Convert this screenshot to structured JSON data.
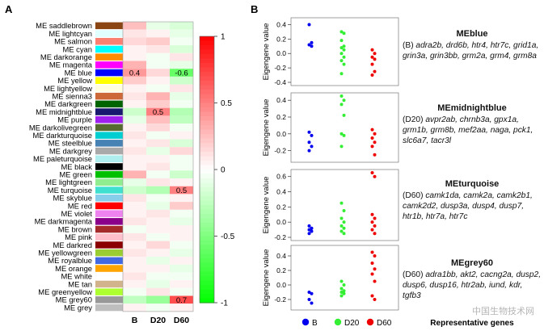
{
  "panel_labels": {
    "a": "A",
    "b": "B"
  },
  "chart_data": [
    {
      "type": "heatmap",
      "rows": [
        "ME saddlebrown",
        "ME lightcyan",
        "ME salmon",
        "ME cyan",
        "ME darkorange",
        "ME magenta",
        "ME blue",
        "ME yellow",
        "ME lightyellow",
        "ME sienna3",
        "ME darkgreen",
        "ME midnightblue",
        "ME purple",
        "ME darkolivegreen",
        "ME darkturquoise",
        "ME steelblue",
        "ME darkgrey",
        "ME paleturquoise",
        "ME black",
        "ME green",
        "ME lightgreen",
        "ME turquoise",
        "ME skyblue",
        "ME red",
        "ME violet",
        "ME darkmagenta",
        "ME brown",
        "ME pink",
        "ME darkred",
        "ME yellowgreen",
        "ME royalblue",
        "ME orange",
        "ME white",
        "ME tan",
        "ME greenyellow",
        "ME grey60",
        "ME grey"
      ],
      "module_colors": [
        "#8b4513",
        "#e0ffff",
        "#fa8072",
        "#00ffff",
        "#ff8c00",
        "#ff00ff",
        "#0000ff",
        "#ffff00",
        "#ffffe0",
        "#cd6839",
        "#006400",
        "#191970",
        "#a020f0",
        "#556b2f",
        "#00ced1",
        "#4682b4",
        "#a9a9a9",
        "#afeeee",
        "#000000",
        "#00c000",
        "#90ee90",
        "#40e0d0",
        "#87ceeb",
        "#ff0000",
        "#ee82ee",
        "#8b008b",
        "#a52a2a",
        "#ffc0cb",
        "#8b0000",
        "#9acd32",
        "#4169e1",
        "#ffa500",
        "#ffffff",
        "#d2b48c",
        "#adff2f",
        "#999999",
        "#bebebe"
      ],
      "columns": [
        "B",
        "D20",
        "D60"
      ],
      "values": [
        [
          0.25,
          -0.1,
          -0.15
        ],
        [
          0.1,
          0.05,
          -0.1
        ],
        [
          0.15,
          0.2,
          -0.05
        ],
        [
          0.05,
          0.1,
          -0.15
        ],
        [
          0.05,
          -0.05,
          0.1
        ],
        [
          0.3,
          -0.05,
          -0.1
        ],
        [
          0.4,
          0.15,
          -0.6
        ],
        [
          0.2,
          0.05,
          -0.2
        ],
        [
          0.05,
          -0.05,
          0.1
        ],
        [
          0.1,
          0.3,
          -0.1
        ],
        [
          0.05,
          0.2,
          -0.05
        ],
        [
          -0.2,
          0.5,
          -0.3
        ],
        [
          -0.1,
          0.25,
          -0.25
        ],
        [
          0.05,
          0.15,
          -0.05
        ],
        [
          0.1,
          -0.05,
          0.05
        ],
        [
          0.05,
          0.1,
          -0.15
        ],
        [
          0.1,
          -0.1,
          0.15
        ],
        [
          0.05,
          0.05,
          -0.05
        ],
        [
          0.05,
          0.1,
          -0.05
        ],
        [
          0.3,
          -0.05,
          -0.2
        ],
        [
          -0.1,
          0.1,
          0.05
        ],
        [
          -0.2,
          -0.3,
          0.5
        ],
        [
          0.1,
          -0.05,
          0.05
        ],
        [
          0.05,
          -0.1,
          0.2
        ],
        [
          0.05,
          0.1,
          -0.05
        ],
        [
          0.1,
          0.05,
          -0.1
        ],
        [
          -0.05,
          0.05,
          0.05
        ],
        [
          0.1,
          -0.05,
          0.05
        ],
        [
          0.05,
          0.15,
          -0.05
        ],
        [
          0.1,
          0.05,
          -0.1
        ],
        [
          0.05,
          -0.1,
          0.05
        ],
        [
          0.05,
          0.05,
          -0.1
        ],
        [
          0.1,
          -0.05,
          -0.05
        ],
        [
          0.05,
          -0.1,
          0.05
        ],
        [
          -0.05,
          0.1,
          -0.05
        ],
        [
          -0.25,
          -0.4,
          0.7
        ],
        [
          0.05,
          -0.05,
          0.05
        ]
      ],
      "cell_labels": {
        "0.4": "0.4",
        "-0.6": "-0.6",
        "0.5": "0.5",
        "0.7": "0.7"
      },
      "annotated_cells": [
        {
          "row": 6,
          "col": 0,
          "label": "0.4"
        },
        {
          "row": 6,
          "col": 2,
          "label": "-0.6"
        },
        {
          "row": 11,
          "col": 1,
          "label": "0.5"
        },
        {
          "row": 21,
          "col": 2,
          "label": "0.5"
        },
        {
          "row": 35,
          "col": 2,
          "label": "0.7"
        }
      ],
      "colorbar": {
        "ticks": [
          "1",
          "0.5",
          "0",
          "-0.5",
          "-1"
        ],
        "tick_values": [
          1,
          0.5,
          0,
          -0.5,
          -1
        ],
        "range": [
          -1,
          1
        ],
        "high_color": "#ff0000",
        "mid_color": "#ffffff",
        "low_color": "#00ff00"
      }
    },
    {
      "type": "scatter",
      "ylabel": "Eigengene value",
      "group_colors": {
        "B": "#0000ee",
        "D20": "#33ee33",
        "D60": "#ee0000"
      },
      "legend": [
        "B",
        "D20",
        "D60"
      ],
      "xlabel": "Representative genes",
      "panels": [
        {
          "ylim": [
            -0.4,
            0.45
          ],
          "yticks": [
            0.4,
            0.2,
            0.0,
            -0.2,
            -0.4
          ],
          "ytick_labels": [
            "0.4",
            "0.2",
            "0.0",
            "-0.2",
            "-0.4"
          ],
          "B": [
            0.4,
            0.15,
            0.12,
            0.1
          ],
          "D20": [
            0.3,
            0.28,
            0.18,
            0.1,
            0.08,
            0.05,
            0.0,
            -0.05,
            -0.1,
            -0.15,
            -0.28
          ],
          "D60": [
            0.05,
            0.0,
            -0.05,
            -0.08,
            -0.15,
            -0.25,
            -0.3
          ]
        },
        {
          "ylim": [
            -0.3,
            0.45
          ],
          "yticks": [
            0.4,
            0.2,
            0.0,
            -0.2
          ],
          "ytick_labels": [
            "0.4",
            "0.2",
            "0.0",
            "-0.2"
          ],
          "B": [
            0.02,
            -0.02,
            -0.1,
            -0.15,
            -0.2
          ],
          "D20": [
            0.45,
            0.4,
            0.35,
            0.22,
            0.0,
            -0.02,
            -0.15
          ],
          "D60": [
            0.05,
            0.0,
            -0.05,
            -0.1,
            -0.15,
            -0.25
          ]
        },
        {
          "ylim": [
            -0.2,
            0.65
          ],
          "yticks": [
            0.6,
            0.4,
            0.2,
            0.0,
            -0.2
          ],
          "ytick_labels": [
            "0.6",
            "0.4",
            "0.2",
            "0.0",
            "-0.2"
          ],
          "B": [
            -0.05,
            -0.08,
            -0.1,
            -0.12,
            -0.15
          ],
          "D20": [
            0.25,
            0.15,
            0.05,
            0.0,
            -0.05,
            -0.08,
            -0.12,
            -0.15
          ],
          "D60": [
            0.65,
            0.6,
            0.1,
            0.05,
            0.0,
            -0.05,
            -0.1,
            -0.15
          ]
        },
        {
          "ylim": [
            -0.3,
            0.5
          ],
          "yticks": [
            0.4,
            0.2,
            0.0,
            -0.2
          ],
          "ytick_labels": [
            "0.4",
            "0.2",
            "0.0",
            "-0.2"
          ],
          "B": [
            -0.1,
            -0.12,
            -0.2,
            -0.25
          ],
          "D20": [
            0.05,
            0.0,
            -0.05,
            -0.08,
            -0.1,
            -0.12,
            -0.15
          ],
          "D60": [
            0.45,
            0.4,
            0.3,
            0.22,
            0.15,
            0.05,
            -0.15,
            -0.2
          ]
        }
      ]
    }
  ],
  "gene_panels": [
    {
      "module": "MEblue",
      "stage": "(B) ",
      "genes": "adra2b, drd6b, htr4, htr7c, grid1a, grin3a, grin3bb, grm2a, grm4, grm8a"
    },
    {
      "module": "MEmidnightblue",
      "stage": "(D20) ",
      "genes": "avpr2ab, chrnb3a, gpx1a, grm1b, grm8b, mef2aa, naga, pck1, slc6a7, tacr3l"
    },
    {
      "module": "MEturquoise",
      "stage": "(D60) ",
      "genes": "camk1da, camk2a, camk2b1, camk2d2, dusp3a, dusp4, dusp7, htr1b, htr7a, htr7c"
    },
    {
      "module": "MEgrey60",
      "stage": "(D60) ",
      "genes": "adra1bb, akt2, cacng2a, dusp2, dusp6, dusp16, htr2ab, iund, kdr, tgfb3"
    }
  ],
  "watermark": "中国生物技术网"
}
